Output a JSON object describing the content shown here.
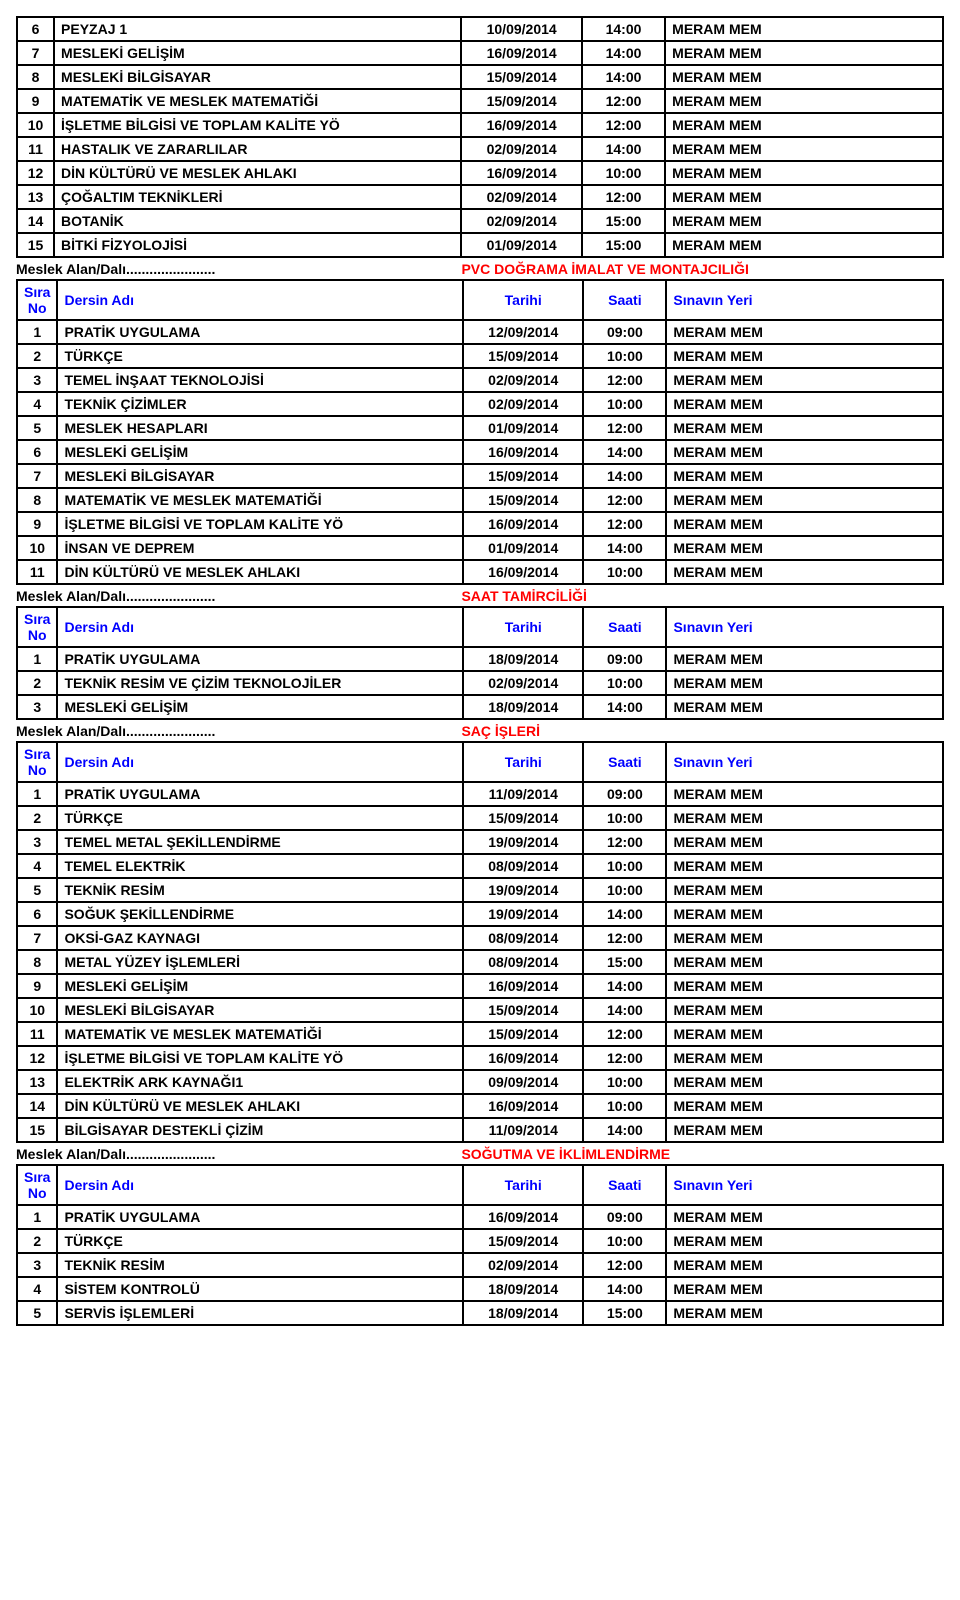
{
  "venue": "MERAM MEM",
  "sectionLabel": "Meslek Alan/Dalı.......................",
  "headers": {
    "sira": "Sıra No",
    "dersin": "Dersin Adı",
    "tarihi": "Tarihi",
    "saati": "Saati",
    "sinavin": "Sınavın Yeri"
  },
  "top_rows": [
    {
      "n": "6",
      "name": "PEYZAJ 1",
      "date": "10/09/2014",
      "time": "14:00"
    },
    {
      "n": "7",
      "name": "MESLEKİ GELİŞİM",
      "date": "16/09/2014",
      "time": "14:00"
    },
    {
      "n": "8",
      "name": "MESLEKİ BİLGİSAYAR",
      "date": "15/09/2014",
      "time": "14:00"
    },
    {
      "n": "9",
      "name": "MATEMATİK VE MESLEK MATEMATİĞİ",
      "date": "15/09/2014",
      "time": "12:00"
    },
    {
      "n": "10",
      "name": "İŞLETME BİLGİSİ VE TOPLAM KALİTE YÖ",
      "date": "16/09/2014",
      "time": "12:00"
    },
    {
      "n": "11",
      "name": "HASTALIK VE ZARARLILAR",
      "date": "02/09/2014",
      "time": "14:00"
    },
    {
      "n": "12",
      "name": "DİN KÜLTÜRÜ VE MESLEK AHLAKI",
      "date": "16/09/2014",
      "time": "10:00"
    },
    {
      "n": "13",
      "name": "ÇOĞALTIM TEKNİKLERİ",
      "date": "02/09/2014",
      "time": "12:00"
    },
    {
      "n": "14",
      "name": "BOTANİK",
      "date": "02/09/2014",
      "time": "15:00"
    },
    {
      "n": "15",
      "name": "BİTKİ FİZYOLOJİSİ",
      "date": "01/09/2014",
      "time": "15:00"
    }
  ],
  "sections": [
    {
      "title": "PVC DOĞRAMA İMALAT VE MONTAJCILIĞI",
      "rows": [
        {
          "n": "1",
          "name": "PRATİK UYGULAMA",
          "date": "12/09/2014",
          "time": "09:00"
        },
        {
          "n": "2",
          "name": "TÜRKÇE",
          "date": "15/09/2014",
          "time": "10:00"
        },
        {
          "n": "3",
          "name": "TEMEL İNŞAAT TEKNOLOJİSİ",
          "date": "02/09/2014",
          "time": "12:00"
        },
        {
          "n": "4",
          "name": "TEKNİK ÇİZİMLER",
          "date": "02/09/2014",
          "time": "10:00"
        },
        {
          "n": "5",
          "name": "MESLEK HESAPLARI",
          "date": "01/09/2014",
          "time": "12:00"
        },
        {
          "n": "6",
          "name": "MESLEKİ GELİŞİM",
          "date": "16/09/2014",
          "time": "14:00"
        },
        {
          "n": "7",
          "name": "MESLEKİ BİLGİSAYAR",
          "date": "15/09/2014",
          "time": "14:00"
        },
        {
          "n": "8",
          "name": "MATEMATİK VE MESLEK MATEMATİĞİ",
          "date": "15/09/2014",
          "time": "12:00"
        },
        {
          "n": "9",
          "name": "İŞLETME BİLGİSİ VE TOPLAM KALİTE YÖ",
          "date": "16/09/2014",
          "time": "12:00"
        },
        {
          "n": "10",
          "name": "İNSAN VE DEPREM",
          "date": "01/09/2014",
          "time": "14:00"
        },
        {
          "n": "11",
          "name": "DİN KÜLTÜRÜ VE MESLEK AHLAKI",
          "date": "16/09/2014",
          "time": "10:00"
        }
      ]
    },
    {
      "title": "SAAT TAMİRCİLİĞİ",
      "rows": [
        {
          "n": "1",
          "name": "PRATİK UYGULAMA",
          "date": "18/09/2014",
          "time": "09:00"
        },
        {
          "n": "2",
          "name": "TEKNİK RESİM VE ÇİZİM TEKNOLOJİLER",
          "date": "02/09/2014",
          "time": "10:00"
        },
        {
          "n": "3",
          "name": "MESLEKİ GELİŞİM",
          "date": "18/09/2014",
          "time": "14:00"
        }
      ]
    },
    {
      "title": "SAÇ İŞLERİ",
      "rows": [
        {
          "n": "1",
          "name": "PRATİK UYGULAMA",
          "date": "11/09/2014",
          "time": "09:00"
        },
        {
          "n": "2",
          "name": "TÜRKÇE",
          "date": "15/09/2014",
          "time": "10:00"
        },
        {
          "n": "3",
          "name": "TEMEL METAL ŞEKİLLENDİRME",
          "date": "19/09/2014",
          "time": "12:00"
        },
        {
          "n": "4",
          "name": "TEMEL ELEKTRİK",
          "date": "08/09/2014",
          "time": "10:00"
        },
        {
          "n": "5",
          "name": "TEKNİK RESİM",
          "date": "19/09/2014",
          "time": "10:00"
        },
        {
          "n": "6",
          "name": "SOĞUK ŞEKİLLENDİRME",
          "date": "19/09/2014",
          "time": "14:00"
        },
        {
          "n": "7",
          "name": "OKSİ-GAZ KAYNAGI",
          "date": "08/09/2014",
          "time": "12:00"
        },
        {
          "n": "8",
          "name": "METAL YÜZEY İŞLEMLERİ",
          "date": "08/09/2014",
          "time": "15:00"
        },
        {
          "n": "9",
          "name": "MESLEKİ GELİŞİM",
          "date": "16/09/2014",
          "time": "14:00"
        },
        {
          "n": "10",
          "name": "MESLEKİ BİLGİSAYAR",
          "date": "15/09/2014",
          "time": "14:00"
        },
        {
          "n": "11",
          "name": "MATEMATİK VE MESLEK MATEMATİĞİ",
          "date": "15/09/2014",
          "time": "12:00"
        },
        {
          "n": "12",
          "name": "İŞLETME BİLGİSİ VE TOPLAM KALİTE YÖ",
          "date": "16/09/2014",
          "time": "12:00"
        },
        {
          "n": "13",
          "name": "ELEKTRİK ARK KAYNAĞI1",
          "date": "09/09/2014",
          "time": "10:00"
        },
        {
          "n": "14",
          "name": "DİN KÜLTÜRÜ VE MESLEK AHLAKI",
          "date": "16/09/2014",
          "time": "10:00"
        },
        {
          "n": "15",
          "name": "BİLGİSAYAR DESTEKLİ ÇİZİM",
          "date": "11/09/2014",
          "time": "14:00"
        }
      ]
    },
    {
      "title": "SOĞUTMA VE İKLİMLENDİRME",
      "rows": [
        {
          "n": "1",
          "name": "PRATİK UYGULAMA",
          "date": "16/09/2014",
          "time": "09:00"
        },
        {
          "n": "2",
          "name": "TÜRKÇE",
          "date": "15/09/2014",
          "time": "10:00"
        },
        {
          "n": "3",
          "name": "TEKNİK RESİM",
          "date": "02/09/2014",
          "time": "12:00"
        },
        {
          "n": "4",
          "name": "SİSTEM KONTROLÜ",
          "date": "18/09/2014",
          "time": "14:00"
        },
        {
          "n": "5",
          "name": "SERVİS İŞLEMLERİ",
          "date": "18/09/2014",
          "time": "15:00"
        }
      ]
    }
  ]
}
